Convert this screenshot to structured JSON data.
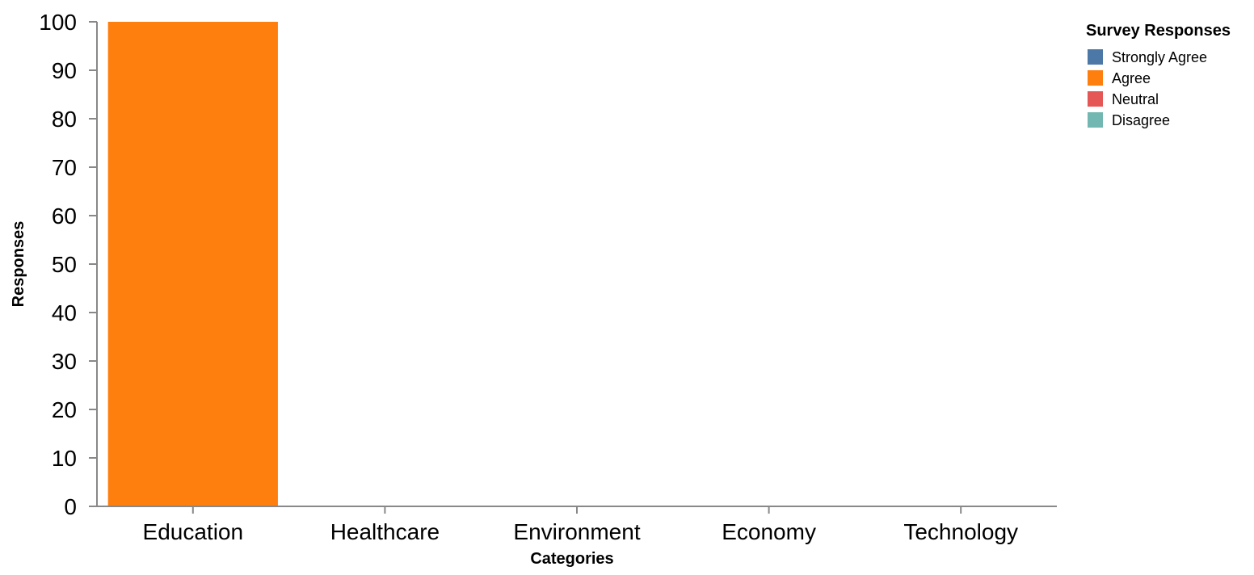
{
  "chart_data": {
    "type": "bar",
    "stacked": true,
    "title": "",
    "xlabel": "Categories",
    "ylabel": "Responses",
    "ylim": [
      0,
      100
    ],
    "yticks": [
      0,
      10,
      20,
      30,
      40,
      50,
      60,
      70,
      80,
      90,
      100
    ],
    "grid": false,
    "categories": [
      "Education",
      "Healthcare",
      "Environment",
      "Economy",
      "Technology"
    ],
    "series": [
      {
        "name": "Strongly Agree",
        "color": "#4c78a8",
        "values": [
          0,
          0,
          0,
          0,
          0
        ]
      },
      {
        "name": "Agree",
        "color": "#ff7f0e",
        "values": [
          100,
          0,
          0,
          0,
          0
        ]
      },
      {
        "name": "Neutral",
        "color": "#e45756",
        "values": [
          0,
          0,
          0,
          0,
          0
        ]
      },
      {
        "name": "Disagree",
        "color": "#72b7b2",
        "values": [
          0,
          0,
          0,
          0,
          0
        ]
      }
    ],
    "legend": {
      "title": "Survey Responses",
      "position": "top-right"
    }
  }
}
